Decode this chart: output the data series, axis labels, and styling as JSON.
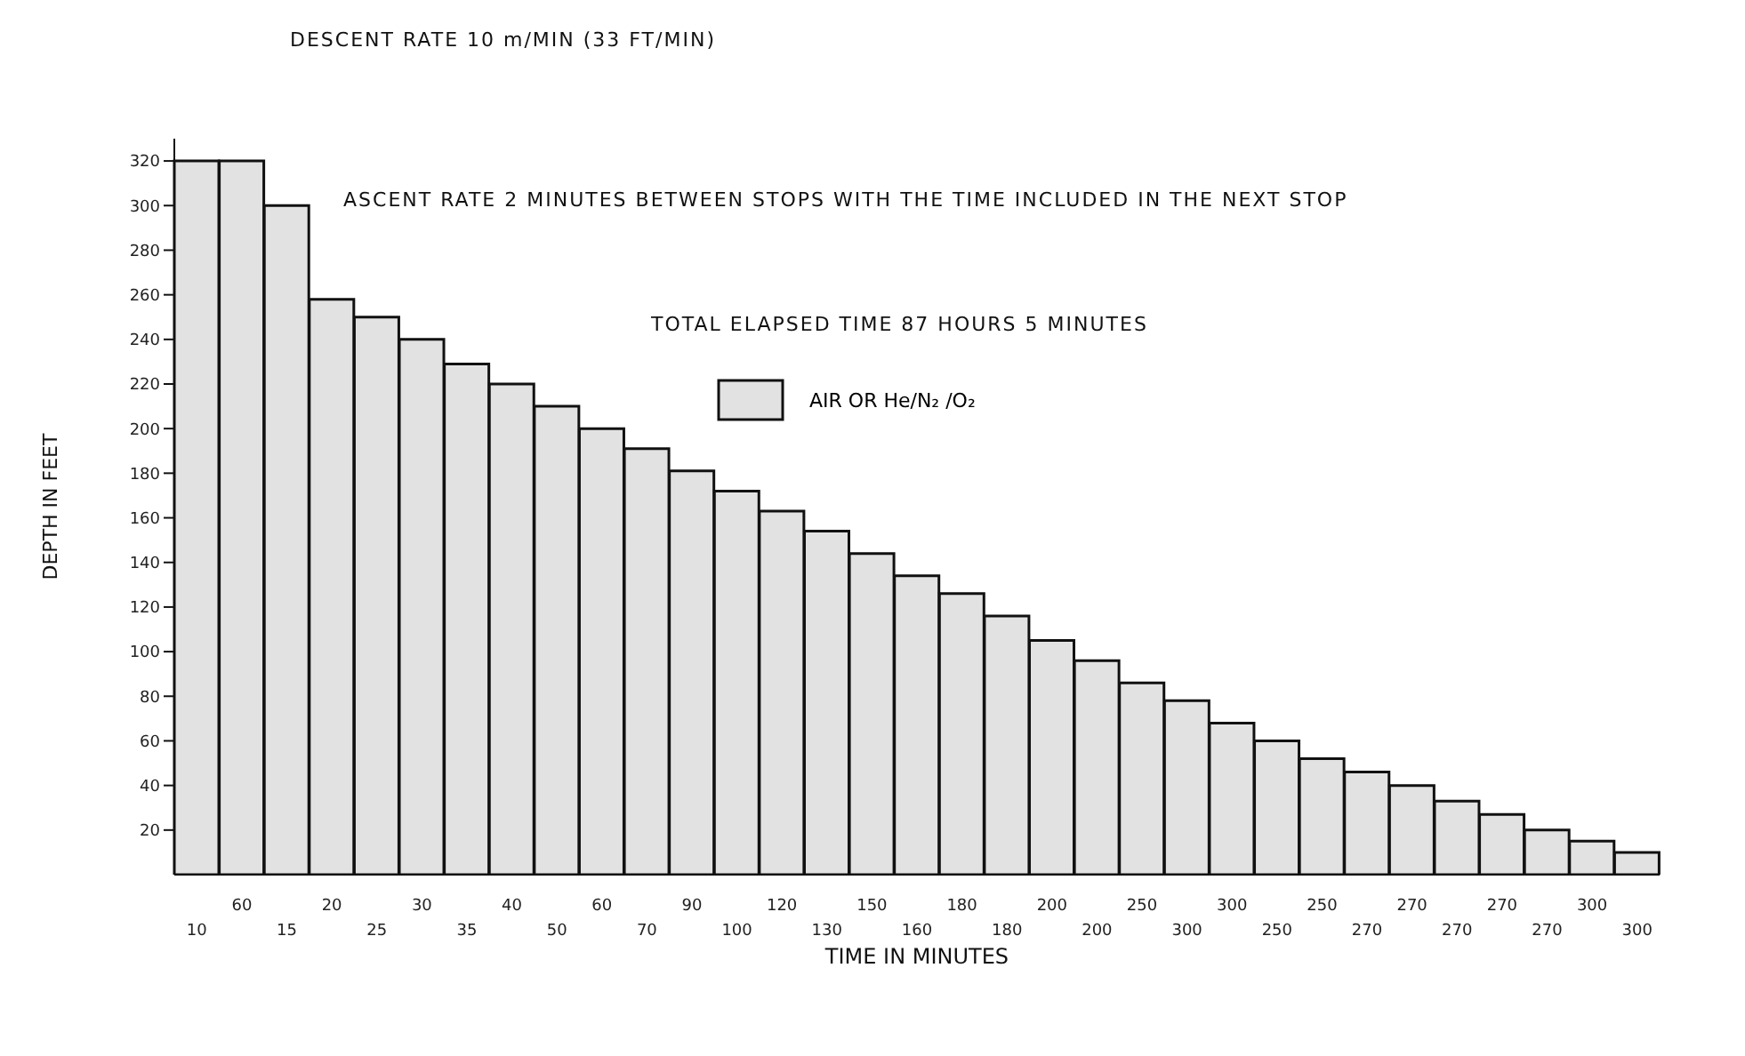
{
  "chart_data": {
    "type": "bar",
    "xlabel": "TIME IN MINUTES",
    "ylabel": "DEPTH IN FEET",
    "annotations": [
      "DESCENT RATE 10 m/MIN (33 FT/MIN)",
      "ASCENT RATE 2 MINUTES BETWEEN STOPS WITH THE TIME INCLUDED IN THE NEXT STOP",
      "TOTAL ELAPSED TIME 87 HOURS 5 MINUTES"
    ],
    "categories": [
      "10",
      "60",
      "15",
      "20",
      "25",
      "30",
      "35",
      "40",
      "50",
      "60",
      "70",
      "90",
      "100",
      "120",
      "130",
      "150",
      "160",
      "180",
      "180",
      "200",
      "200",
      "250",
      "300",
      "300",
      "250",
      "250",
      "270",
      "270",
      "270",
      "270",
      "270",
      "300",
      "300"
    ],
    "series": [
      {
        "name": "AIR OR He/N₂ /O₂",
        "color": "#e2e2e2",
        "values": [
          320,
          320,
          300,
          258,
          250,
          240,
          229,
          220,
          210,
          200,
          191,
          181,
          172,
          163,
          154,
          144,
          134,
          126,
          116,
          105,
          96,
          86,
          78,
          68,
          60,
          52,
          46,
          40,
          33,
          27,
          20,
          15,
          10
        ]
      }
    ],
    "ylim": [
      0,
      330
    ],
    "yticks": [
      20,
      40,
      60,
      80,
      100,
      120,
      140,
      160,
      180,
      200,
      220,
      240,
      260,
      280,
      300,
      320
    ],
    "grid": false,
    "legend": "top"
  }
}
